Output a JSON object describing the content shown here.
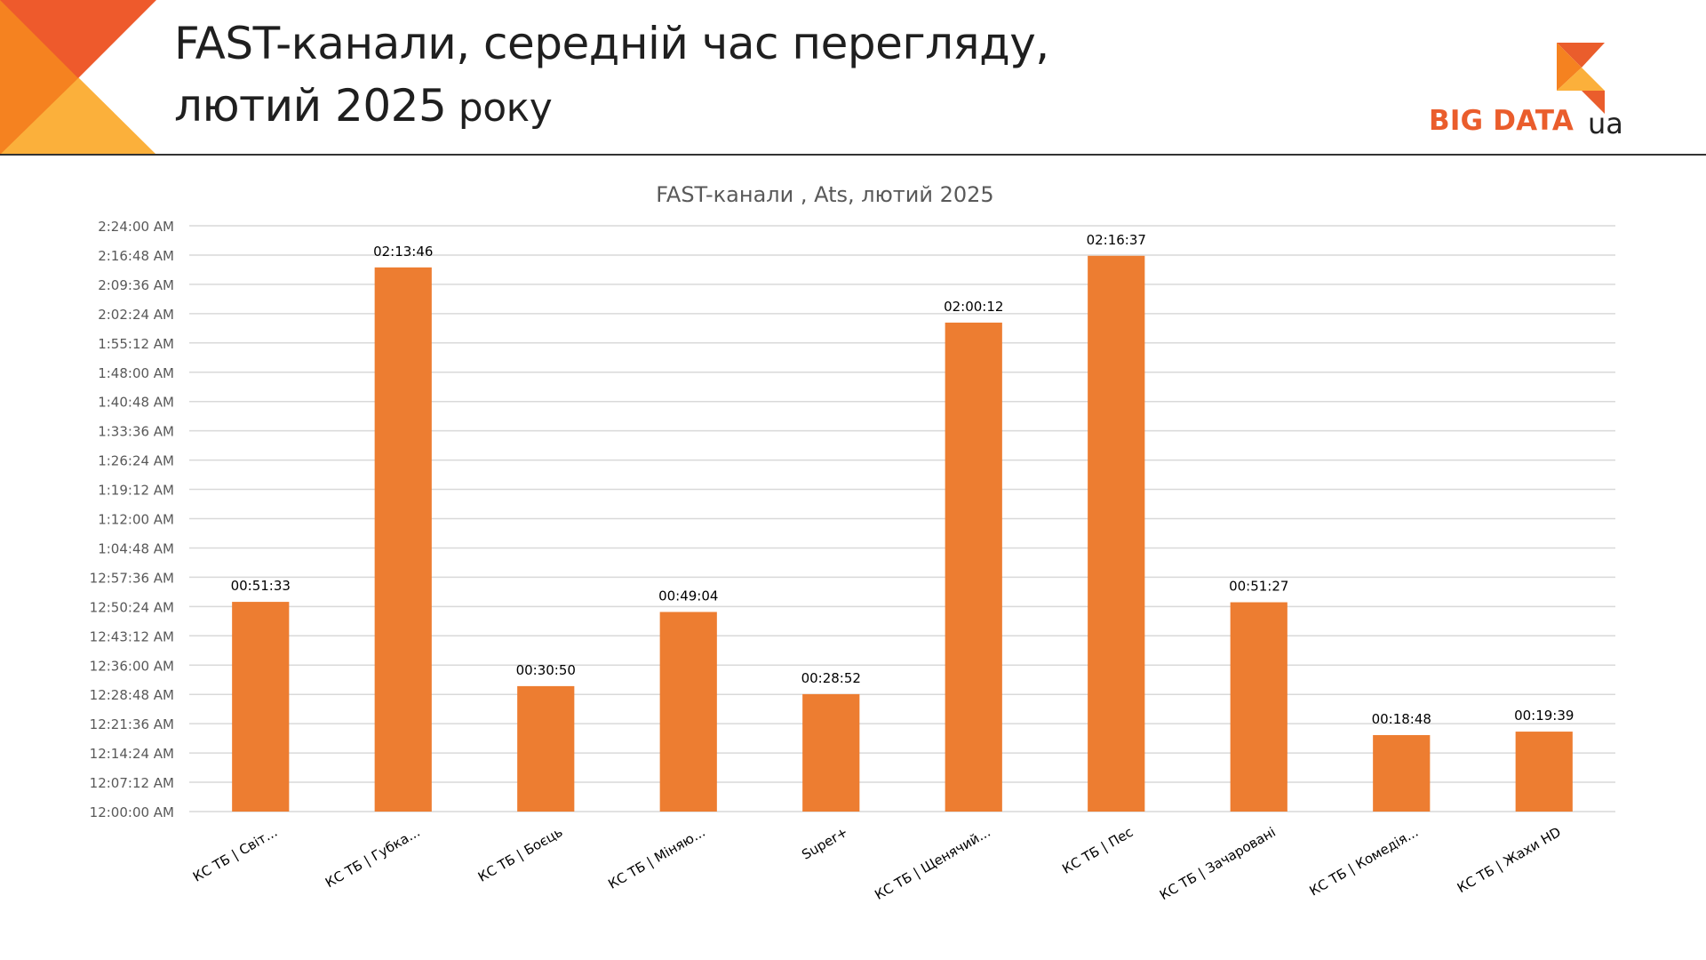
{
  "page": {
    "title_line1": "FAST-канали, середній час перегляду,",
    "title_line2": "лютий 2025",
    "title_line2_suffix": " року"
  },
  "logo": {
    "text": "BIG DATA",
    "suffix": "ua"
  },
  "colors": {
    "bar": "#ed7d31",
    "gridline": "#d9d9d9",
    "axis_text": "#595959",
    "label_text": "#000000",
    "logo_orange": "#ea5d2c",
    "corner_dark": "#ee5a2c",
    "corner_mid": "#f58220",
    "corner_light": "#fbb03b"
  },
  "chart_data": {
    "type": "bar",
    "title": "FAST-канали , Ats, лютий 2025",
    "xlabel": "",
    "ylabel": "",
    "grid": true,
    "legend": "none",
    "value_unit": "seconds",
    "ylim": [
      0,
      8640
    ],
    "yticks": [
      0,
      432,
      864,
      1296,
      1728,
      2160,
      2592,
      3024,
      3456,
      3888,
      4320,
      4752,
      5184,
      5616,
      6048,
      6480,
      6912,
      7344,
      7776,
      8208,
      8640
    ],
    "ytick_labels": [
      "12:00:00 AM",
      "12:07:12 AM",
      "12:14:24 AM",
      "12:21:36 AM",
      "12:28:48 AM",
      "12:36:00 AM",
      "12:43:12 AM",
      "12:50:24 AM",
      "12:57:36 AM",
      "1:04:48 AM",
      "1:12:00 AM",
      "1:19:12 AM",
      "1:26:24 AM",
      "1:33:36 AM",
      "1:40:48 AM",
      "1:48:00 AM",
      "1:55:12 AM",
      "2:02:24 AM",
      "2:09:36 AM",
      "2:16:48 AM",
      "2:24:00 AM"
    ],
    "categories": [
      "КС ТБ | Світ...",
      "КС ТБ | Губка...",
      "КС ТБ | Боєць",
      "КС ТБ | Міняю...",
      "Super+",
      "КС ТБ | Щенячий...",
      "КС ТБ | Пес",
      "КС ТБ | Зачаровані",
      "КС ТБ | Комедія...",
      "КС ТБ | Жахи HD"
    ],
    "values": [
      3093,
      8026,
      1850,
      2944,
      1732,
      7212,
      8197,
      3087,
      1128,
      1179
    ],
    "data_labels": [
      "00:51:33",
      "02:13:46",
      "00:30:50",
      "00:49:04",
      "00:28:52",
      "02:00:12",
      "02:16:37",
      "00:51:27",
      "00:18:48",
      "00:19:39"
    ]
  }
}
